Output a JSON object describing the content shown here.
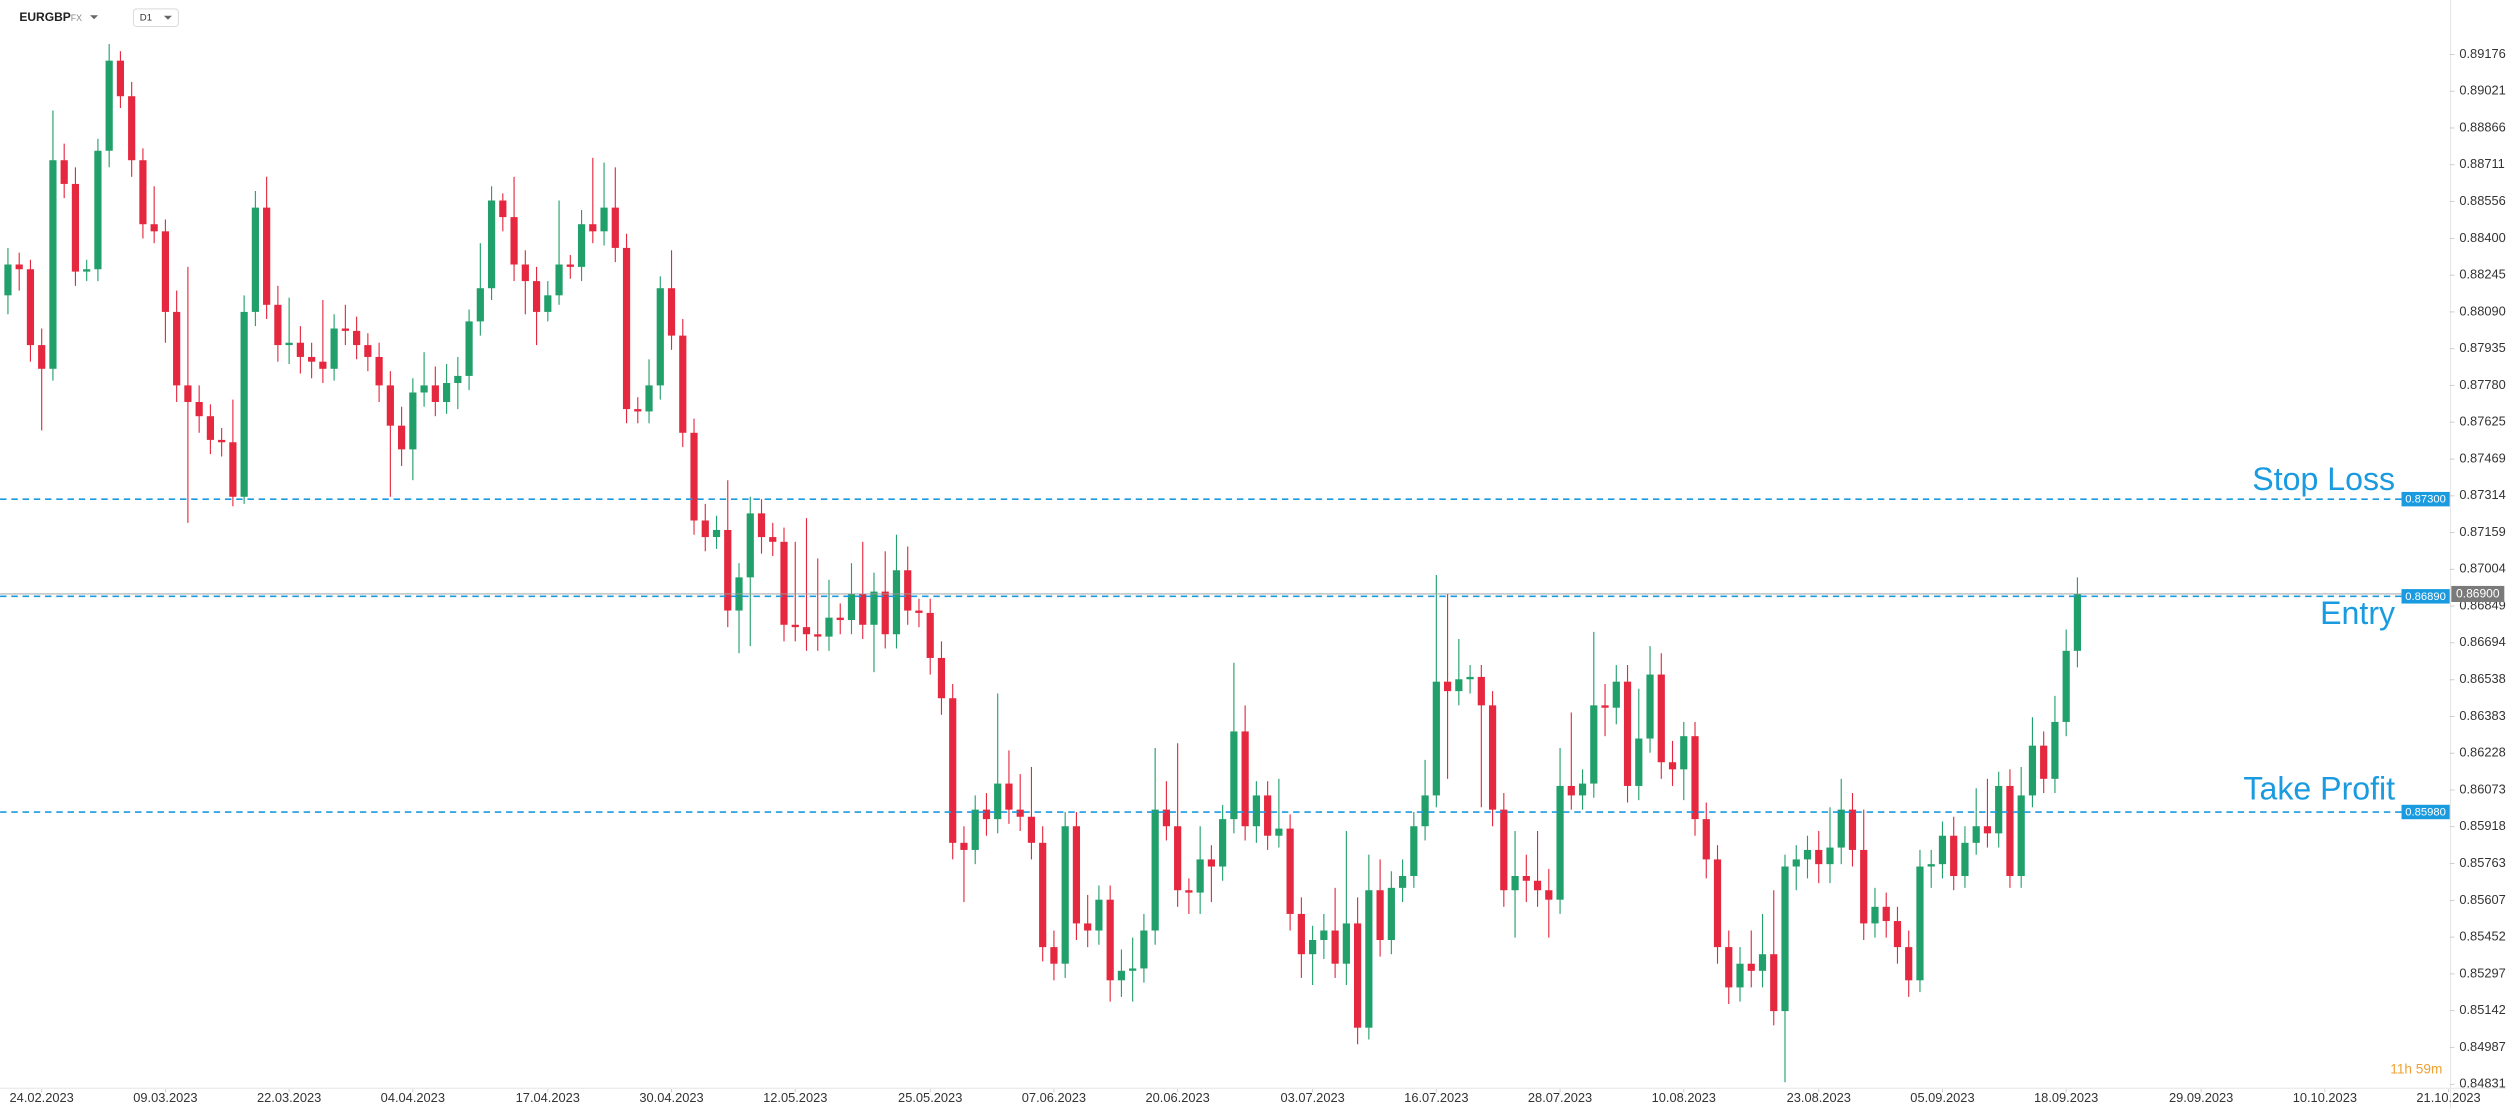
{
  "header": {
    "symbol": "EURGBP",
    "market": "FX",
    "interval": "D1"
  },
  "chart_data": {
    "type": "candlestick",
    "up_color": "#22a06b",
    "down_color": "#e5283f",
    "grid": false,
    "xlim": [
      -0.7,
      217.1
    ],
    "xticks": [
      {
        "value": 3,
        "label": "24.02.2023"
      },
      {
        "value": 14,
        "label": "09.03.2023"
      },
      {
        "value": 25,
        "label": "22.03.2023"
      },
      {
        "value": 36,
        "label": "04.04.2023"
      },
      {
        "value": 48,
        "label": "17.04.2023"
      },
      {
        "value": 59,
        "label": "30.04.2023"
      },
      {
        "value": 70,
        "label": "12.05.2023"
      },
      {
        "value": 82,
        "label": "25.05.2023"
      },
      {
        "value": 93,
        "label": "07.06.2023"
      },
      {
        "value": 104,
        "label": "20.06.2023"
      },
      {
        "value": 116,
        "label": "03.07.2023"
      },
      {
        "value": 127,
        "label": "16.07.2023"
      },
      {
        "value": 138,
        "label": "28.07.2023"
      },
      {
        "value": 149,
        "label": "10.08.2023"
      },
      {
        "value": 161,
        "label": "23.08.2023"
      },
      {
        "value": 172,
        "label": "05.09.2023"
      },
      {
        "value": 183,
        "label": "18.09.2023"
      },
      {
        "value": 195,
        "label": "29.09.2023"
      },
      {
        "value": 206,
        "label": "10.10.2023"
      },
      {
        "value": 217,
        "label": "21.10.2023"
      }
    ],
    "ylim": [
      0.84811,
      0.89284
    ],
    "yticks": [
      0.89176,
      0.89021,
      0.88866,
      0.88711,
      0.88556,
      {
        "value": 0.884,
        "label": "0.88400"
      },
      0.88245,
      {
        "value": 0.8809,
        "label": "0.88090"
      },
      0.87935,
      {
        "value": 0.8778,
        "label": "0.87780"
      },
      0.87625,
      0.87469,
      0.87314,
      0.87159,
      0.87004,
      0.86849,
      0.86694,
      0.86538,
      0.86383,
      0.86228,
      0.86073,
      0.85918,
      0.85763,
      0.85607,
      0.85452,
      0.85297,
      0.85142,
      0.84987,
      0.84831
    ],
    "open": [
      0.8816,
      0.8829,
      0.8827,
      0.8795,
      0.8785,
      0.8873,
      0.8863,
      0.8826,
      0.8827,
      0.8877,
      0.8915,
      0.89,
      0.8873,
      0.8846,
      0.8843,
      0.8809,
      0.8778,
      0.8771,
      0.8765,
      0.8755,
      0.8754,
      0.8731,
      0.8809,
      0.8853,
      0.8812,
      0.8795,
      0.8796,
      0.879,
      0.8788,
      0.8785,
      0.8802,
      0.8801,
      0.8795,
      0.879,
      0.8778,
      0.8761,
      0.8751,
      0.8775,
      0.8778,
      0.8771,
      0.8779,
      0.8782,
      0.8805,
      0.8819,
      0.8856,
      0.8849,
      0.8829,
      0.8822,
      0.8809,
      0.8816,
      0.8829,
      0.8828,
      0.8846,
      0.8843,
      0.8853,
      0.8836,
      0.8768,
      0.8767,
      0.8778,
      0.8819,
      0.8799,
      0.8758,
      0.8721,
      0.8714,
      0.8717,
      0.8683,
      0.8697,
      0.8724,
      0.8714,
      0.8712,
      0.8677,
      0.8676,
      0.8673,
      0.8672,
      0.868,
      0.8679,
      0.869,
      0.8677,
      0.8691,
      0.8673,
      0.87,
      0.8683,
      0.8682,
      0.8663,
      0.8646,
      0.8585,
      0.8582,
      0.8599,
      0.8595,
      0.861,
      0.8599,
      0.8596,
      0.8585,
      0.8541,
      0.8534,
      0.8592,
      0.8551,
      0.8548,
      0.8561,
      0.8527,
      0.8531,
      0.8532,
      0.8548,
      0.8599,
      0.8592,
      0.8565,
      0.8564,
      0.8578,
      0.8575,
      0.8595,
      0.8632,
      0.8592,
      0.8605,
      0.8588,
      0.8591,
      0.8555,
      0.8538,
      0.8544,
      0.8548,
      0.8534,
      0.8551,
      0.8507,
      0.8565,
      0.8544,
      0.8566,
      0.8571,
      0.8592,
      0.8605,
      0.8653,
      0.8649,
      0.8654,
      0.8655,
      0.8643,
      0.8599,
      0.8565,
      0.8571,
      0.8569,
      0.8565,
      0.8561,
      0.8609,
      0.8605,
      0.861,
      0.8643,
      0.8642,
      0.8653,
      0.8609,
      0.8629,
      0.8656,
      0.8619,
      0.8616,
      0.863,
      0.8595,
      0.8578,
      0.8541,
      0.8524,
      0.8534,
      0.8531,
      0.8538,
      0.8514,
      0.8575,
      0.8578,
      0.8582,
      0.8576,
      0.8583,
      0.8599,
      0.8582,
      0.8551,
      0.8558,
      0.8552,
      0.8541,
      0.8527,
      0.8575,
      0.8576,
      0.8588,
      0.8571,
      0.8585,
      0.8592,
      0.8589,
      0.8609,
      0.8571,
      0.8605,
      0.8626,
      0.8612,
      0.8636,
      0.8666
    ],
    "high": [
      0.8836,
      0.8834,
      0.8831,
      0.8802,
      0.8894,
      0.888,
      0.887,
      0.8831,
      0.8882,
      0.8922,
      0.8919,
      0.8906,
      0.8878,
      0.8862,
      0.8848,
      0.8818,
      0.8828,
      0.8778,
      0.877,
      0.876,
      0.8772,
      0.8816,
      0.886,
      0.8866,
      0.882,
      0.8815,
      0.8803,
      0.8796,
      0.8814,
      0.8808,
      0.8812,
      0.8807,
      0.88,
      0.8796,
      0.8784,
      0.8769,
      0.8781,
      0.8792,
      0.8786,
      0.8787,
      0.879,
      0.881,
      0.8838,
      0.8862,
      0.8859,
      0.8866,
      0.8835,
      0.8828,
      0.8822,
      0.8856,
      0.8833,
      0.8852,
      0.8874,
      0.8872,
      0.887,
      0.8842,
      0.8773,
      0.8789,
      0.8824,
      0.8835,
      0.8806,
      0.8764,
      0.8728,
      0.8723,
      0.8738,
      0.8703,
      0.8731,
      0.873,
      0.872,
      0.8718,
      0.8712,
      0.8722,
      0.8705,
      0.8696,
      0.8686,
      0.8703,
      0.8712,
      0.8699,
      0.8708,
      0.8715,
      0.871,
      0.8688,
      0.8688,
      0.867,
      0.8652,
      0.8592,
      0.8605,
      0.8606,
      0.8648,
      0.8624,
      0.8614,
      0.8617,
      0.8592,
      0.8548,
      0.8598,
      0.8598,
      0.8563,
      0.8567,
      0.8567,
      0.854,
      0.8545,
      0.8555,
      0.8625,
      0.8611,
      0.8627,
      0.857,
      0.8592,
      0.8584,
      0.8601,
      0.8661,
      0.8643,
      0.8611,
      0.8611,
      0.8612,
      0.8597,
      0.8562,
      0.855,
      0.8555,
      0.8566,
      0.859,
      0.8562,
      0.858,
      0.8578,
      0.8573,
      0.8578,
      0.8598,
      0.862,
      0.8698,
      0.869,
      0.8671,
      0.866,
      0.866,
      0.8649,
      0.8606,
      0.859,
      0.858,
      0.859,
      0.8574,
      0.8625,
      0.864,
      0.8616,
      0.8674,
      0.8652,
      0.866,
      0.866,
      0.865,
      0.8668,
      0.8665,
      0.8628,
      0.8636,
      0.8636,
      0.8602,
      0.8584,
      0.8548,
      0.8541,
      0.8548,
      0.8555,
      0.8565,
      0.858,
      0.8584,
      0.8588,
      0.859,
      0.86,
      0.8612,
      0.8606,
      0.8599,
      0.8566,
      0.8564,
      0.8558,
      0.8548,
      0.8582,
      0.8582,
      0.8594,
      0.8596,
      0.8592,
      0.8608,
      0.8612,
      0.8615,
      0.8616,
      0.8617,
      0.8638,
      0.8632,
      0.8647,
      0.8675,
      0.8697
    ],
    "low": [
      0.8808,
      0.8818,
      0.8788,
      0.8759,
      0.878,
      0.8857,
      0.882,
      0.8822,
      0.8822,
      0.887,
      0.8895,
      0.8866,
      0.884,
      0.8838,
      0.8796,
      0.8771,
      0.872,
      0.8758,
      0.8749,
      0.8748,
      0.8727,
      0.8728,
      0.8803,
      0.8806,
      0.8788,
      0.8787,
      0.8783,
      0.8781,
      0.8779,
      0.878,
      0.8795,
      0.8789,
      0.8784,
      0.8771,
      0.8731,
      0.8744,
      0.8738,
      0.8769,
      0.8765,
      0.8766,
      0.8768,
      0.8776,
      0.8799,
      0.8814,
      0.8843,
      0.8822,
      0.8808,
      0.8795,
      0.8805,
      0.8812,
      0.8823,
      0.8822,
      0.8838,
      0.8837,
      0.883,
      0.8762,
      0.8762,
      0.8762,
      0.8772,
      0.8793,
      0.8752,
      0.8715,
      0.8708,
      0.8709,
      0.8676,
      0.8665,
      0.8668,
      0.8707,
      0.8706,
      0.867,
      0.867,
      0.8666,
      0.8666,
      0.8666,
      0.8673,
      0.8673,
      0.8671,
      0.8657,
      0.8667,
      0.8667,
      0.8677,
      0.8676,
      0.8656,
      0.8639,
      0.8578,
      0.856,
      0.8576,
      0.8588,
      0.8589,
      0.8593,
      0.859,
      0.8578,
      0.8535,
      0.8527,
      0.8528,
      0.8544,
      0.8541,
      0.8542,
      0.8518,
      0.852,
      0.8518,
      0.8526,
      0.8542,
      0.8586,
      0.8558,
      0.8555,
      0.8555,
      0.856,
      0.8569,
      0.8589,
      0.8586,
      0.8585,
      0.8582,
      0.8583,
      0.8548,
      0.8528,
      0.8525,
      0.8536,
      0.8528,
      0.8525,
      0.85,
      0.8502,
      0.8537,
      0.8538,
      0.856,
      0.8566,
      0.8586,
      0.86,
      0.8612,
      0.8643,
      0.8648,
      0.86,
      0.8592,
      0.8558,
      0.8545,
      0.856,
      0.8558,
      0.8545,
      0.8555,
      0.8599,
      0.8599,
      0.8604,
      0.863,
      0.8635,
      0.8602,
      0.8603,
      0.8623,
      0.8612,
      0.8609,
      0.8603,
      0.8588,
      0.857,
      0.8534,
      0.8517,
      0.8518,
      0.8524,
      0.8524,
      0.8508,
      0.8484,
      0.8565,
      0.857,
      0.8568,
      0.8568,
      0.8576,
      0.8575,
      0.8544,
      0.8545,
      0.8545,
      0.8534,
      0.852,
      0.8522,
      0.8566,
      0.857,
      0.8565,
      0.8566,
      0.858,
      0.8583,
      0.8583,
      0.8566,
      0.8566,
      0.86,
      0.8606,
      0.8606,
      0.863,
      0.8659
    ],
    "close": [
      0.8829,
      0.8827,
      0.8795,
      0.8785,
      0.8873,
      0.8863,
      0.8826,
      0.8827,
      0.8877,
      0.8915,
      0.89,
      0.8873,
      0.8846,
      0.8843,
      0.8809,
      0.8778,
      0.8771,
      0.8765,
      0.8755,
      0.8754,
      0.8731,
      0.8809,
      0.8853,
      0.8812,
      0.8795,
      0.8796,
      0.879,
      0.8788,
      0.8785,
      0.8802,
      0.8801,
      0.8795,
      0.879,
      0.8778,
      0.8761,
      0.8751,
      0.8775,
      0.8778,
      0.8771,
      0.8779,
      0.8782,
      0.8805,
      0.8819,
      0.8856,
      0.8849,
      0.8829,
      0.8822,
      0.8809,
      0.8816,
      0.8829,
      0.8828,
      0.8846,
      0.8843,
      0.8853,
      0.8836,
      0.8768,
      0.8767,
      0.8778,
      0.8819,
      0.8799,
      0.8758,
      0.8721,
      0.8714,
      0.8717,
      0.8683,
      0.8697,
      0.8724,
      0.8714,
      0.8712,
      0.8677,
      0.8676,
      0.8673,
      0.8672,
      0.868,
      0.8679,
      0.869,
      0.8677,
      0.8691,
      0.8673,
      0.87,
      0.8683,
      0.8682,
      0.8663,
      0.8646,
      0.8585,
      0.8582,
      0.8599,
      0.8595,
      0.861,
      0.8599,
      0.8596,
      0.8585,
      0.8541,
      0.8534,
      0.8592,
      0.8551,
      0.8548,
      0.8561,
      0.8527,
      0.8531,
      0.8532,
      0.8548,
      0.8599,
      0.8592,
      0.8565,
      0.8564,
      0.8578,
      0.8575,
      0.8595,
      0.8632,
      0.8592,
      0.8605,
      0.8588,
      0.8591,
      0.8555,
      0.8538,
      0.8544,
      0.8548,
      0.8534,
      0.8551,
      0.8507,
      0.8565,
      0.8544,
      0.8566,
      0.8571,
      0.8592,
      0.8605,
      0.8653,
      0.8649,
      0.8654,
      0.8655,
      0.8643,
      0.8599,
      0.8565,
      0.8571,
      0.8569,
      0.8565,
      0.8561,
      0.8609,
      0.8605,
      0.861,
      0.8643,
      0.8642,
      0.8653,
      0.8609,
      0.8629,
      0.8656,
      0.8619,
      0.8616,
      0.863,
      0.8595,
      0.8578,
      0.8541,
      0.8524,
      0.8534,
      0.8531,
      0.8538,
      0.8514,
      0.8575,
      0.8578,
      0.8582,
      0.8576,
      0.8583,
      0.8599,
      0.8582,
      0.8551,
      0.8558,
      0.8552,
      0.8541,
      0.8527,
      0.8575,
      0.8576,
      0.8588,
      0.8571,
      0.8585,
      0.8592,
      0.8589,
      0.8609,
      0.8571,
      0.8605,
      0.8626,
      0.8612,
      0.8636,
      0.8666,
      0.869
    ],
    "level_color": "#1a9be0",
    "levels": [
      {
        "name": "Stop Loss",
        "value": 0.873,
        "label": "0.87300"
      },
      {
        "name": "Entry",
        "value": 0.8689,
        "label": "0.86890"
      },
      {
        "name": "Take Profit",
        "value": 0.8598,
        "label": "0.85980"
      }
    ],
    "current_price": {
      "value": 0.869,
      "label": "0.86900"
    },
    "countdown": "11h 59m"
  }
}
